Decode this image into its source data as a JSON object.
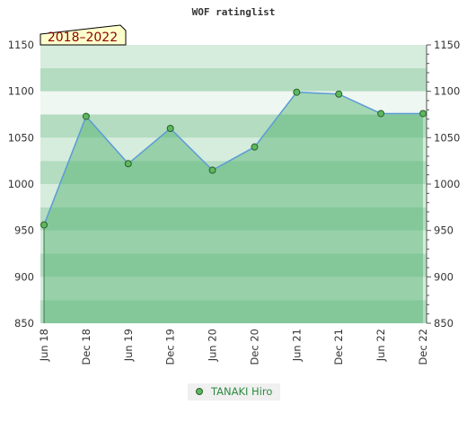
{
  "chart_data": {
    "type": "area",
    "title": "WOF ratinglist",
    "period_label": "2018–2022",
    "xlabel": "",
    "ylabel": "",
    "x": [
      "Jun 18",
      "Dec 18",
      "Jun 19",
      "Dec 19",
      "Jun 20",
      "Dec 20",
      "Jun 21",
      "Dec 21",
      "Jun 22",
      "Dec 22"
    ],
    "ylim": [
      850,
      1150
    ],
    "y_ticks": [
      850,
      900,
      950,
      1000,
      1050,
      1100,
      1150
    ],
    "y_tick_labels": [
      "850",
      "900",
      "950",
      "1000",
      "1050",
      "1100",
      "1150"
    ],
    "grid": false,
    "legend_position": "bottom-center",
    "series": [
      {
        "name": "TANAKI Hiro",
        "values": [
          956,
          1073,
          1022,
          1060,
          1015,
          1040,
          1099,
          1097,
          1076,
          1076
        ]
      }
    ],
    "colors": {
      "line": "#5b9bd5",
      "marker": "#5cb85c",
      "area": "#4caf6a",
      "band_dark": "#b3dcc1",
      "band_light": "#d6ecdd",
      "band_lighter": "#eef7f1",
      "label_bg": "#ffffcc"
    }
  }
}
